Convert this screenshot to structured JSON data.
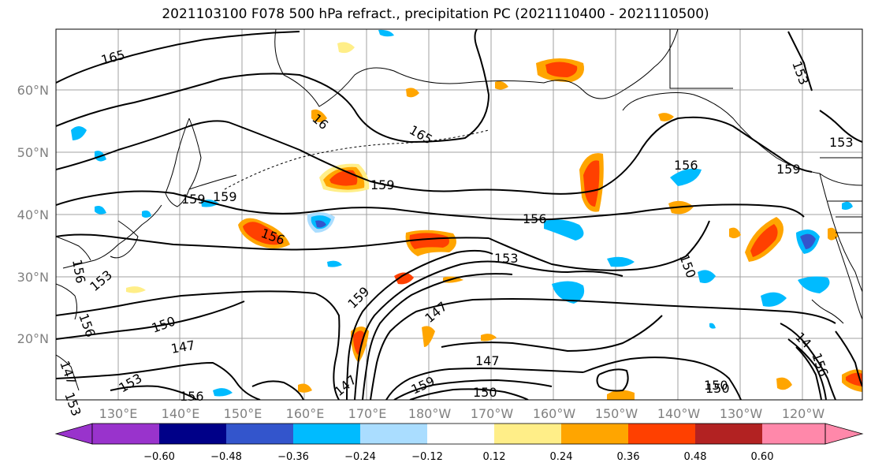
{
  "title": "2021103100 F078 500 hPa refract., precipitation PC (2021110400 - 2021110500)",
  "latitude_labels": [
    "60°N",
    "50°N",
    "40°N",
    "30°N",
    "20°N"
  ],
  "longitude_labels": [
    "130°E",
    "140°E",
    "150°E",
    "160°E",
    "170°E",
    "180°W",
    "170°W",
    "160°W",
    "150°W",
    "140°W",
    "130°W",
    "120°W"
  ],
  "contour_labels": [
    "165",
    "165",
    "159",
    "156",
    "156",
    "156",
    "153",
    "153",
    "150",
    "150",
    "147",
    "147",
    "159",
    "159",
    "156",
    "153",
    "150",
    "147",
    "159",
    "147",
    "153",
    "156",
    "159",
    "150",
    "150",
    "153",
    "156",
    "159",
    "16",
    "147",
    "153",
    "14",
    "156"
  ],
  "colorbar": {
    "ticks": [
      "−0.60",
      "−0.48",
      "−0.36",
      "−0.24",
      "−0.12",
      "0.12",
      "0.24",
      "0.36",
      "0.48",
      "0.60"
    ],
    "colors": [
      "#9933cc",
      "#000088",
      "#3355cc",
      "#00bbff",
      "#aaddff",
      "#ffffff",
      "#ffee88",
      "#ffa500",
      "#ff4000",
      "#b22222",
      "#ff88aa"
    ]
  }
}
